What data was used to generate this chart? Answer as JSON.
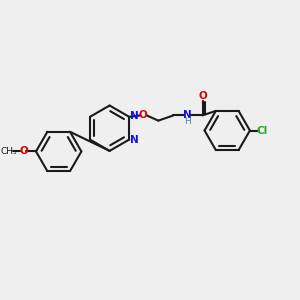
{
  "background_color": "#efefef",
  "figsize": [
    3.0,
    3.0
  ],
  "dpi": 100,
  "bond_color": "#1a1a1a",
  "bond_lw": 1.5,
  "colors": {
    "C": "#1a1a1a",
    "N": "#1010ee",
    "O": "#dd0000",
    "Cl": "#22aa22",
    "H": "#448888"
  },
  "xlim": [
    0,
    10
  ],
  "ylim": [
    0,
    10
  ]
}
